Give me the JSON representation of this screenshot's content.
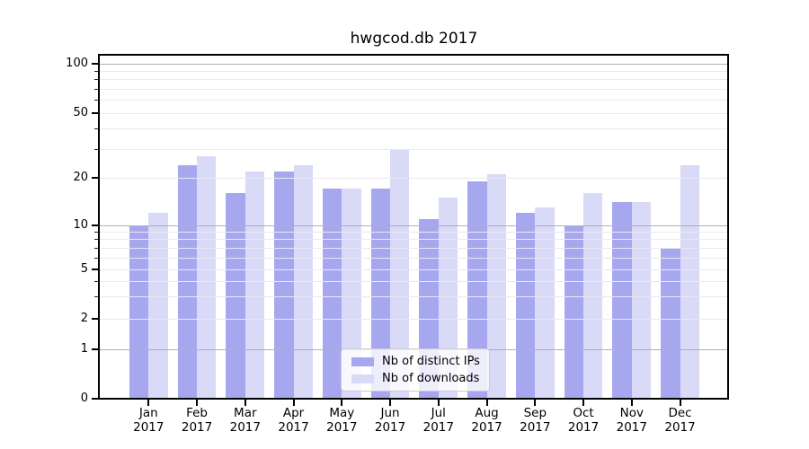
{
  "title": "hwgcod.db 2017",
  "axes": {
    "year": "2017",
    "months": [
      "Jan",
      "Feb",
      "Mar",
      "Apr",
      "May",
      "Jun",
      "Jul",
      "Aug",
      "Sep",
      "Oct",
      "Nov",
      "Dec"
    ],
    "y_tick_labels": [
      "100",
      "50",
      "20",
      "10",
      "5",
      "2",
      "1",
      "0"
    ]
  },
  "legend": {
    "items": [
      {
        "label": "Nb of distinct IPs",
        "color": "#a7a7f0"
      },
      {
        "label": "Nb of downloads",
        "color": "#d9d9f8"
      }
    ]
  },
  "colors": {
    "bar_distinct_ips": "#a7a7f0",
    "bar_downloads": "#d9d9f8",
    "grid_major": "#b0b0b0",
    "grid_minor": "#e9e9ef",
    "axis": "#000000",
    "legend_border": "#cbcbcb"
  },
  "chart_data": {
    "type": "bar",
    "title": "hwgcod.db 2017",
    "categories": [
      "Jan 2017",
      "Feb 2017",
      "Mar 2017",
      "Apr 2017",
      "May 2017",
      "Jun 2017",
      "Jul 2017",
      "Aug 2017",
      "Sep 2017",
      "Oct 2017",
      "Nov 2017",
      "Dec 2017"
    ],
    "series": [
      {
        "name": "Nb of distinct IPs",
        "color": "#a7a7f0",
        "values": [
          10,
          24,
          16,
          22,
          17,
          17,
          11,
          19,
          12,
          10,
          14,
          7
        ]
      },
      {
        "name": "Nb of downloads",
        "color": "#d9d9f8",
        "values": [
          12,
          27,
          22,
          24,
          17,
          30,
          15,
          21,
          13,
          16,
          14,
          24
        ]
      }
    ],
    "xlabel": "",
    "ylabel": "",
    "yscale": "symlog",
    "y_ticks_labeled": [
      0,
      1,
      2,
      5,
      10,
      20,
      50,
      100
    ],
    "y_minor_ticks": [
      3,
      4,
      6,
      7,
      8,
      9,
      30,
      40,
      60,
      70,
      80,
      90
    ],
    "ylim": [
      0,
      114
    ],
    "grid": true,
    "grid_above_bars": true,
    "legend_position": "lower center"
  }
}
